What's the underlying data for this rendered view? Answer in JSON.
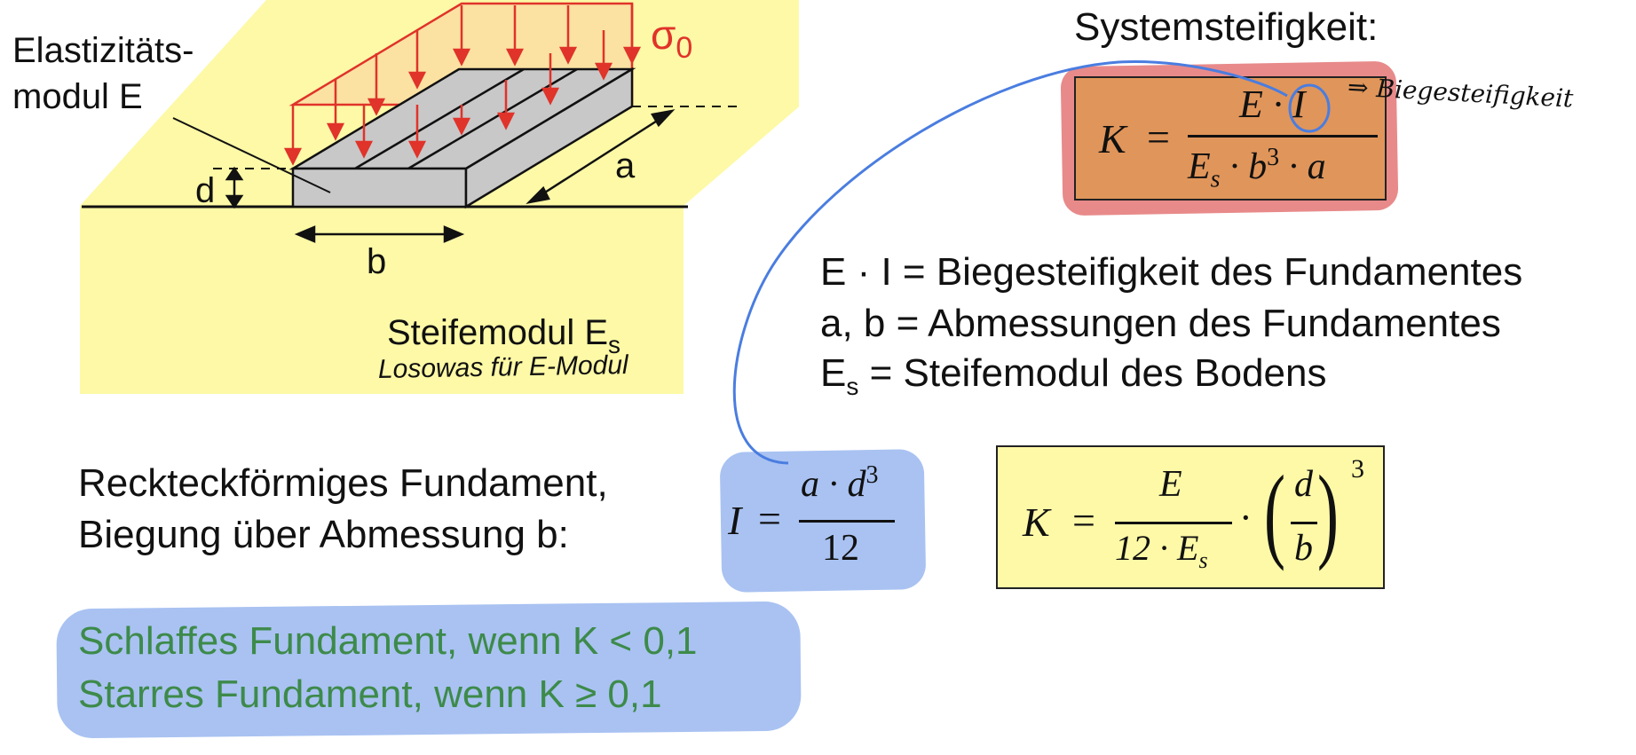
{
  "diagram": {
    "label_elastic_line1": "Elastizitäts-",
    "label_elastic_line2": "modul E",
    "label_sigma": "σ",
    "label_sigma_sub": "0",
    "label_d": "d",
    "label_a": "a",
    "label_b": "b",
    "label_steifemodul": "Steifemodul E",
    "label_steifemodul_sub": "s",
    "handwritten_note": "Losowas für E-Modul"
  },
  "systemsteifigkeit": {
    "title": "Systemsteifigkeit:",
    "K": "K",
    "eq": "=",
    "numerator": "E · I",
    "denominator": "E",
    "denominator_sub": "s",
    "denominator_rest": " · b",
    "denominator_exp": "3",
    "denominator_tail": " · a",
    "handwritten_note": "⇒ Biegesteifigkeit"
  },
  "definitions": [
    {
      "text": "E · I = Biegesteifigkeit des Fundamentes"
    },
    {
      "text": "a, b = Abmessungen des Fundamentes"
    },
    {
      "lhs": "E",
      "sub": "s",
      "text": " = Steifemodul des Bodens"
    }
  ],
  "rectangular": {
    "line1": "Reckteckförmiges Fundament,",
    "line2": "Biegung über Abmessung b:"
  },
  "inertia": {
    "lhs": "I",
    "eq": "=",
    "numerator": "a · d",
    "numerator_exp": "3",
    "denominator": "12"
  },
  "formula2": {
    "K": "K",
    "eq": "=",
    "frac1_num": "E",
    "frac1_den": "12 · E",
    "frac1_den_sub": "s",
    "dot": "·",
    "frac2_num": "d",
    "frac2_den": "b",
    "exp": "3"
  },
  "criteria": {
    "line1": "Schlaffes Fundament, wenn K < 0,1",
    "line2": "Starres Fundament, wenn K ≥ 0,1"
  },
  "colors": {
    "soil_yellow": "#fdf9a6",
    "load_red": "#e0332a",
    "box_orange": "#e0955a",
    "highlight_red": "#e88a8a",
    "highlight_blue": "#a9c2f2",
    "pen_blue": "#4a7de0",
    "green_text": "#3d8a4a",
    "box_yellow": "#fdf9a6"
  }
}
